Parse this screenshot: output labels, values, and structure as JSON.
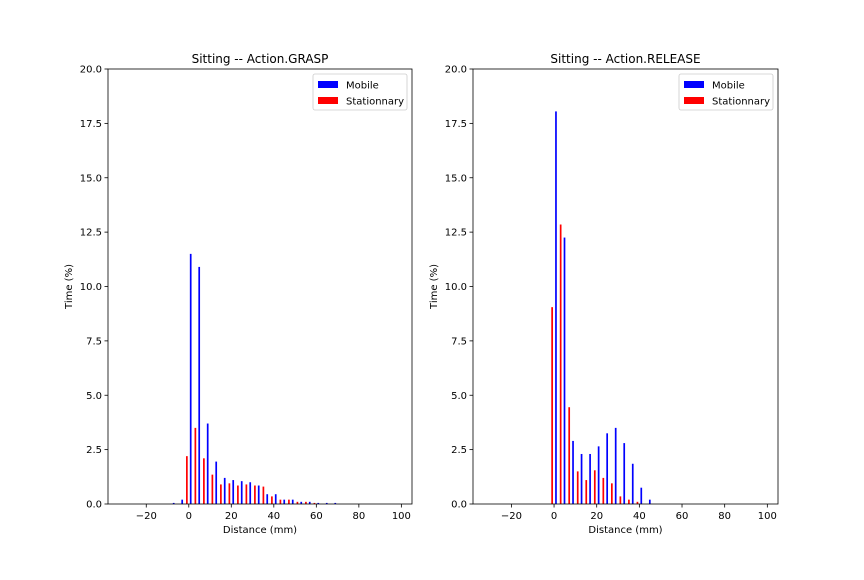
{
  "chart_data": [
    {
      "type": "bar",
      "title": "Sitting -- Action.GRASP",
      "xlabel": "Distance (mm)",
      "ylabel": "Time (%)",
      "xlim": [
        -38,
        105
      ],
      "ylim": [
        0,
        20
      ],
      "xticks": [
        -20,
        0,
        20,
        40,
        60,
        80,
        100
      ],
      "xtick_labels": [
        "−20",
        "0",
        "20",
        "40",
        "60",
        "80",
        "100"
      ],
      "yticks": [
        0,
        2.5,
        5,
        7.5,
        10,
        12.5,
        15,
        17.5,
        20
      ],
      "ytick_labels": [
        "0.0",
        "2.5",
        "5.0",
        "7.5",
        "10.0",
        "12.5",
        "15.0",
        "17.5",
        "20.0"
      ],
      "legend_position": "top-right",
      "series": [
        {
          "name": "Mobile",
          "color": "#0000ff",
          "x": [
            -8,
            -4,
            0,
            4,
            8,
            12,
            16,
            20,
            24,
            28,
            32,
            36,
            40,
            44,
            48,
            52,
            56,
            60,
            64,
            68
          ],
          "values": [
            0.05,
            0.2,
            11.5,
            10.9,
            3.7,
            1.95,
            1.2,
            1.1,
            1.05,
            1.0,
            0.85,
            0.45,
            0.45,
            0.2,
            0.2,
            0.1,
            0.1,
            0.05,
            0.05,
            0.05
          ]
        },
        {
          "name": "Stationnary",
          "color": "#ff0000",
          "x": [
            0,
            4,
            8,
            12,
            16,
            20,
            24,
            28,
            32,
            36,
            40,
            44,
            48,
            52,
            56,
            60
          ],
          "values": [
            2.2,
            3.5,
            2.1,
            1.35,
            0.9,
            0.95,
            0.85,
            0.9,
            0.85,
            0.8,
            0.35,
            0.2,
            0.2,
            0.1,
            0.1,
            0.05
          ]
        }
      ]
    },
    {
      "type": "bar",
      "title": "Sitting -- Action.RELEASE",
      "xlabel": "Distance (mm)",
      "ylabel": "Time (%)",
      "xlim": [
        -38,
        105
      ],
      "ylim": [
        0,
        20
      ],
      "xticks": [
        -20,
        0,
        20,
        40,
        60,
        80,
        100
      ],
      "xtick_labels": [
        "−20",
        "0",
        "20",
        "40",
        "60",
        "80",
        "100"
      ],
      "yticks": [
        0,
        2.5,
        5,
        7.5,
        10,
        12.5,
        15,
        17.5,
        20
      ],
      "ytick_labels": [
        "0.0",
        "2.5",
        "5.0",
        "7.5",
        "10.0",
        "12.5",
        "15.0",
        "17.5",
        "20.0"
      ],
      "legend_position": "top-right",
      "series": [
        {
          "name": "Mobile",
          "color": "#0000ff",
          "x": [
            0,
            4,
            8,
            12,
            16,
            20,
            24,
            28,
            32,
            36,
            40,
            44
          ],
          "values": [
            18.05,
            12.25,
            2.9,
            2.3,
            2.3,
            2.65,
            3.25,
            3.5,
            2.8,
            1.85,
            0.75,
            0.2
          ]
        },
        {
          "name": "Stationnary",
          "color": "#ff0000",
          "x": [
            0,
            4,
            8,
            12,
            16,
            20,
            24,
            28,
            32,
            36,
            40
          ],
          "values": [
            9.05,
            12.85,
            4.45,
            1.5,
            1.1,
            1.55,
            1.2,
            0.95,
            0.35,
            0.2,
            0.1
          ]
        }
      ]
    }
  ]
}
